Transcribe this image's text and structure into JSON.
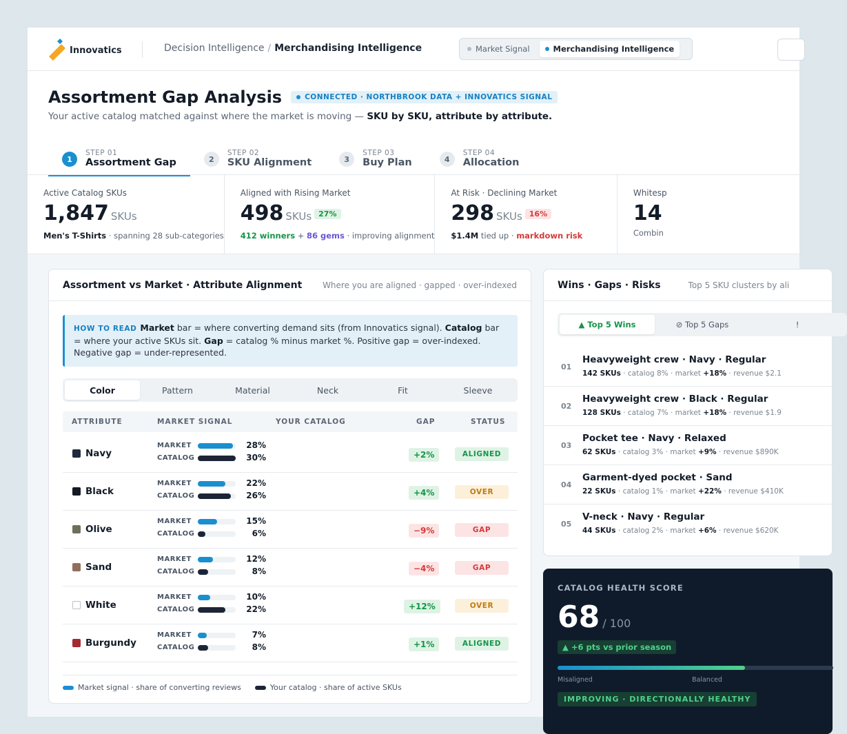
{
  "brand": {
    "name": "Innovatics"
  },
  "breadcrumb": {
    "root": "Decision Intelligence",
    "separator": "/",
    "current": "Merchandising Intelligence"
  },
  "mode_toggle": {
    "options": [
      "Market Signal",
      "Merchandising Intelligence"
    ],
    "selected": "Merchandising Intelligence"
  },
  "page": {
    "title": "Assortment Gap Analysis",
    "status_badge": "CONNECTED · NORTHBROOK DATA + INNOVATICS SIGNAL",
    "subtitle_prefix": "Your active catalog matched against where the market is moving — ",
    "subtitle_emphasis": "SKU by SKU, attribute by attribute."
  },
  "steps": [
    {
      "num": "1",
      "label_top": "STEP 01",
      "label": "Assortment Gap",
      "active": true
    },
    {
      "num": "2",
      "label_top": "STEP 02",
      "label": "SKU Alignment",
      "active": false
    },
    {
      "num": "3",
      "label_top": "STEP 03",
      "label": "Buy Plan",
      "active": false
    },
    {
      "num": "4",
      "label_top": "STEP 04",
      "label": "Allocation",
      "active": false
    }
  ],
  "kpis": [
    {
      "label": "Active Catalog SKUs",
      "value": "1,847",
      "unit": "SKUs",
      "sub_bold": "Men's T-Shirts",
      "sub_rest": " · spanning 28 sub-categories"
    },
    {
      "label": "Aligned with Rising Market",
      "value": "498",
      "unit": "SKUs",
      "pill": "27%",
      "sub_winners": "412 winners",
      "sub_plus": " + ",
      "sub_gems": "86 gems",
      "sub_rest": " · improving alignment"
    },
    {
      "label": "At Risk · Declining Market",
      "value": "298",
      "unit": "SKUs",
      "pill": "16%",
      "sub_bold": "$1.4M",
      "sub_mid": " tied up · ",
      "sub_risk": "markdown risk"
    },
    {
      "label": "Whitesp",
      "value": "14",
      "sub_rest": "Combin"
    }
  ],
  "alignment_card": {
    "title": "Assortment vs Market · Attribute Alignment",
    "hint": "Where you are aligned · gapped · over-indexed",
    "howto_tag": "HOW TO READ",
    "howto_market": "Market",
    "howto_t1": " bar = where converting demand sits (from Innovatics signal). ",
    "howto_catalog": "Catalog",
    "howto_t2": " bar = where your active SKUs sit. ",
    "howto_gap": "Gap",
    "howto_t3": " = catalog % minus market %. Positive gap = over-indexed. Negative gap = under-represented.",
    "tabs": [
      "Color",
      "Pattern",
      "Material",
      "Neck",
      "Fit",
      "Sleeve"
    ],
    "active_tab": "Color",
    "columns": [
      "ATTRIBUTE",
      "MARKET SIGNAL",
      "YOUR CATALOG",
      "GAP",
      "STATUS"
    ],
    "bar_labels": {
      "market": "MARKET",
      "catalog": "CATALOG"
    },
    "rows": [
      {
        "name": "Navy",
        "swatch": "#1e2a3d",
        "market": 28,
        "catalog": 30,
        "market_text": "28%",
        "catalog_text": "30%",
        "gap": "+2%",
        "gap_sign": "pos",
        "status": "ALIGNED",
        "status_kind": "aligned"
      },
      {
        "name": "Black",
        "swatch": "#141a24",
        "market": 22,
        "catalog": 26,
        "market_text": "22%",
        "catalog_text": "26%",
        "gap": "+4%",
        "gap_sign": "pos",
        "status": "OVER",
        "status_kind": "over"
      },
      {
        "name": "Olive",
        "swatch": "#6e705c",
        "market": 15,
        "catalog": 6,
        "market_text": "15%",
        "catalog_text": "6%",
        "gap": "−9%",
        "gap_sign": "neg",
        "status": "GAP",
        "status_kind": "gapst"
      },
      {
        "name": "Sand",
        "swatch": "#8f6f5c",
        "market": 12,
        "catalog": 8,
        "market_text": "12%",
        "catalog_text": "8%",
        "gap": "−4%",
        "gap_sign": "neg",
        "status": "GAP",
        "status_kind": "gapst"
      },
      {
        "name": "White",
        "swatch": "#ffffff",
        "market": 10,
        "catalog": 22,
        "market_text": "10%",
        "catalog_text": "22%",
        "gap": "+12%",
        "gap_sign": "pos",
        "status": "OVER",
        "status_kind": "over"
      },
      {
        "name": "Burgundy",
        "swatch": "#a5292f",
        "market": 7,
        "catalog": 8,
        "market_text": "7%",
        "catalog_text": "8%",
        "gap": "+1%",
        "gap_sign": "pos",
        "status": "ALIGNED",
        "status_kind": "aligned"
      }
    ],
    "legend": {
      "market": "Market signal · share of converting reviews",
      "catalog": "Your catalog · share of active SKUs"
    }
  },
  "wins_card": {
    "title": "Wins · Gaps · Risks",
    "hint": "Top 5 SKU clusters by ali",
    "tabs": [
      "▲ Top 5 Wins",
      "⊘ Top 5 Gaps",
      "!"
    ],
    "items": [
      {
        "idx": "01",
        "title": "Heavyweight crew · Navy · Regular",
        "skus": "142 SKUs",
        "s1": " · catalog 8% · market ",
        "mkt": "+18%",
        "s2": " · revenue $2.1"
      },
      {
        "idx": "02",
        "title": "Heavyweight crew · Black · Regular",
        "skus": "128 SKUs",
        "s1": " · catalog 7% · market ",
        "mkt": "+18%",
        "s2": " · revenue $1.9"
      },
      {
        "idx": "03",
        "title": "Pocket tee · Navy · Relaxed",
        "skus": "62 SKUs",
        "s1": " · catalog 3% · market ",
        "mkt": "+9%",
        "s2": " · revenue $890K"
      },
      {
        "idx": "04",
        "title": "Garment-dyed pocket · Sand",
        "skus": "22 SKUs",
        "s1": " · catalog 1% · market ",
        "mkt": "+22%",
        "s2": " · revenue $410K"
      },
      {
        "idx": "05",
        "title": "V-neck · Navy · Regular",
        "skus": "44 SKUs",
        "s1": " · catalog 2% · market ",
        "mkt": "+6%",
        "s2": " · revenue $620K"
      }
    ]
  },
  "health": {
    "label": "CATALOG HEALTH SCORE",
    "score": "68",
    "out_of": "/ 100",
    "score_value": 68,
    "delta": "▲ +6 pts vs prior season",
    "scale_low": "Misaligned",
    "scale_mid": "Balanced",
    "status": "IMPROVING · DIRECTIONALLY HEALTHY"
  },
  "colors": {
    "accent": "#1a8fd0",
    "market_bar": "#1a8fd0",
    "catalog_bar": "#1b2536",
    "positive": "#17944a",
    "negative": "#d33b3b",
    "warning": "#c07a12"
  }
}
